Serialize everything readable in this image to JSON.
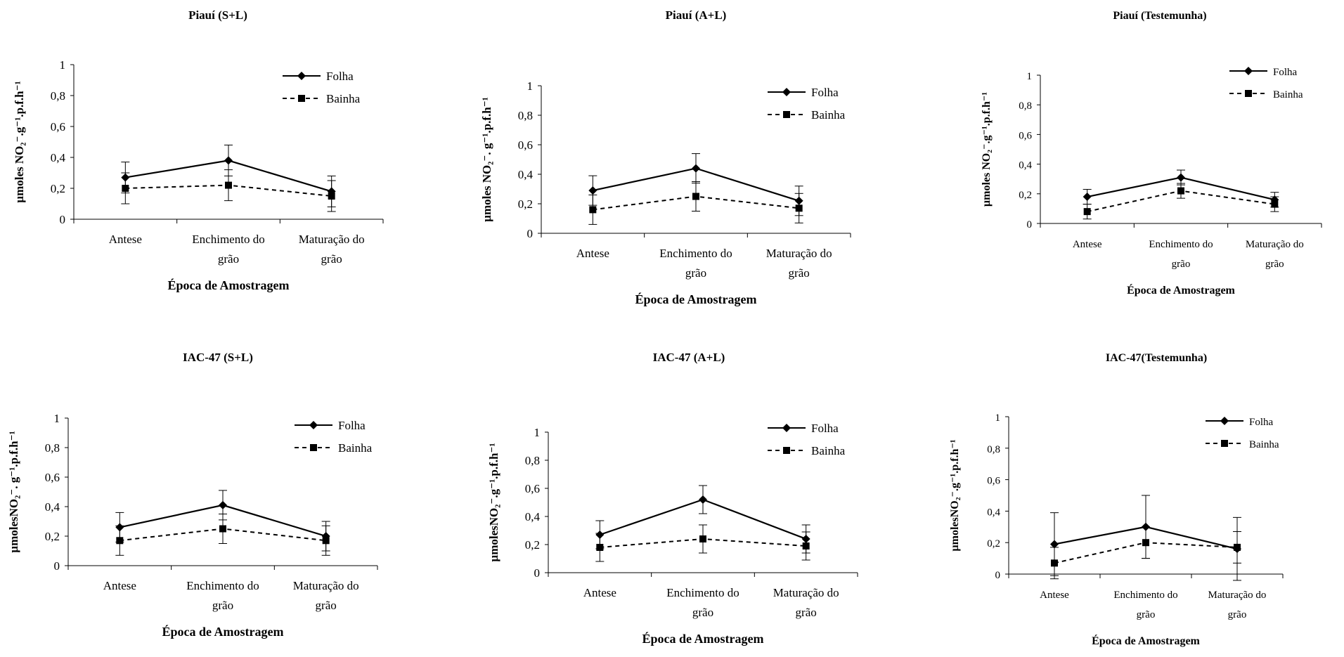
{
  "chart_data": [
    {
      "type": "line",
      "title": "Piauí (S+L)",
      "ylabel": "µmoles NO₂⁻.g⁻¹.p.f.h⁻¹",
      "xlabel": "Época de Amostragem",
      "categories": [
        "Antese",
        "Enchimento do grão",
        "Maturação do grão"
      ],
      "ylim": [
        0,
        1
      ],
      "yticks": [
        "0",
        "0,2",
        "0,4",
        "0,6",
        "0,8",
        "1"
      ],
      "series": [
        {
          "name": "Folha",
          "values": [
            0.27,
            0.38,
            0.18
          ],
          "err": [
            0.1,
            0.1,
            0.1
          ]
        },
        {
          "name": "Bainha",
          "values": [
            0.2,
            0.22,
            0.15
          ],
          "err": [
            0.1,
            0.1,
            0.1
          ]
        }
      ],
      "legend": "top-right"
    },
    {
      "type": "line",
      "title": "Piauí (A+L)",
      "ylabel": "µmoles NO₂⁻. g⁻¹.p.f.h⁻¹",
      "xlabel": "Época de Amostragem",
      "categories": [
        "Antese",
        "Enchimento do grão",
        "Maturação do grão"
      ],
      "ylim": [
        0,
        1
      ],
      "yticks": [
        "0",
        "0,2",
        "0,4",
        "0,6",
        "0,8",
        "1"
      ],
      "series": [
        {
          "name": "Folha",
          "values": [
            0.29,
            0.44,
            0.22
          ],
          "err": [
            0.1,
            0.1,
            0.1
          ]
        },
        {
          "name": "Bainha",
          "values": [
            0.16,
            0.25,
            0.17
          ],
          "err": [
            0.1,
            0.1,
            0.1
          ]
        }
      ],
      "legend": "top-right"
    },
    {
      "type": "line",
      "title": "Piauí (Testemunha)",
      "ylabel": "µmoles NO₂⁻.g⁻¹.p.f.h⁻¹",
      "xlabel": "Época de Amostragem",
      "categories": [
        "Antese",
        "Enchimento do grão",
        "Maturação do grão"
      ],
      "ylim": [
        0,
        1
      ],
      "yticks": [
        "0",
        "0,2",
        "0,4",
        "0,6",
        "0,8",
        "1"
      ],
      "series": [
        {
          "name": "Folha",
          "values": [
            0.18,
            0.31,
            0.16
          ],
          "err": [
            0.05,
            0.05,
            0.05
          ]
        },
        {
          "name": "Bainha",
          "values": [
            0.08,
            0.22,
            0.13
          ],
          "err": [
            0.05,
            0.05,
            0.05
          ]
        }
      ],
      "legend": "top-right"
    },
    {
      "type": "line",
      "title": "IAC-47 (S+L)",
      "ylabel": "µmolesNO₂⁻. g⁻¹.p.f.h⁻¹",
      "xlabel": "Época de Amostragem",
      "categories": [
        "Antese",
        "Enchimento do grão",
        "Maturação do grão"
      ],
      "ylim": [
        0,
        1
      ],
      "yticks": [
        "0",
        "0,2",
        "0,4",
        "0,6",
        "0,8",
        "1"
      ],
      "series": [
        {
          "name": "Folha",
          "values": [
            0.26,
            0.41,
            0.2
          ],
          "err": [
            0.1,
            0.1,
            0.1
          ]
        },
        {
          "name": "Bainha",
          "values": [
            0.17,
            0.25,
            0.17
          ],
          "err": [
            0.1,
            0.1,
            0.1
          ]
        }
      ],
      "legend": "top-right"
    },
    {
      "type": "line",
      "title": "IAC-47 (A+L)",
      "ylabel": "µmolesNO₂⁻.g⁻¹.p.f.h⁻¹",
      "xlabel": "Época de Amostragem",
      "categories": [
        "Antese",
        "Enchimento do grão",
        "Maturação do grão"
      ],
      "ylim": [
        0,
        1
      ],
      "yticks": [
        "0",
        "0,2",
        "0,4",
        "0,6",
        "0,8",
        "1"
      ],
      "series": [
        {
          "name": "Folha",
          "values": [
            0.27,
            0.52,
            0.24
          ],
          "err": [
            0.1,
            0.1,
            0.1
          ]
        },
        {
          "name": "Bainha",
          "values": [
            0.18,
            0.24,
            0.19
          ],
          "err": [
            0.1,
            0.1,
            0.1
          ]
        }
      ],
      "legend": "top-right"
    },
    {
      "type": "line",
      "title": "IAC-47(Testemunha)",
      "ylabel": "µmolesNO₂⁻.g⁻¹.p.f.h⁻¹",
      "xlabel": "Época de Amostragem",
      "categories": [
        "Antese",
        "Enchimento do grão",
        "Maturação do grão"
      ],
      "ylim": [
        0,
        1
      ],
      "yticks": [
        "0",
        "0,2",
        "0,4",
        "0,6",
        "0,8",
        "1"
      ],
      "series": [
        {
          "name": "Folha",
          "values": [
            0.19,
            0.3,
            0.16
          ],
          "err": [
            0.2,
            0.2,
            0.2
          ]
        },
        {
          "name": "Bainha",
          "values": [
            0.07,
            0.2,
            0.17
          ],
          "err": [
            0.1,
            0.1,
            0.1
          ]
        }
      ],
      "legend": "top-right"
    }
  ]
}
